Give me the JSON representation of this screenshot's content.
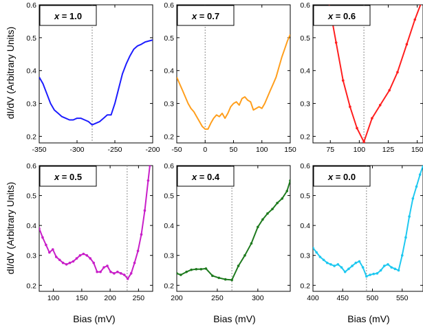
{
  "axis_labels": {
    "ylabel": "dI/dV (Arbitrary Units)",
    "xlabel": "Bias (mV)"
  },
  "chart_data": [
    {
      "type": "line",
      "label": "x = 1.0",
      "color": "#1c1cff",
      "xlim": [
        -350,
        -200
      ],
      "ylim": [
        0.18,
        0.6
      ],
      "xticks": [
        -350,
        -300,
        -250,
        -200
      ],
      "yticks": [
        0.2,
        0.3,
        0.4,
        0.5,
        0.6
      ],
      "dashed_x": -280,
      "markers": false,
      "x": [
        -350,
        -345,
        -340,
        -335,
        -330,
        -325,
        -320,
        -315,
        -310,
        -305,
        -300,
        -295,
        -290,
        -285,
        -280,
        -275,
        -270,
        -265,
        -260,
        -255,
        -250,
        -245,
        -240,
        -235,
        -230,
        -225,
        -220,
        -215,
        -210,
        -205,
        -200
      ],
      "y": [
        0.38,
        0.36,
        0.33,
        0.3,
        0.28,
        0.27,
        0.26,
        0.255,
        0.25,
        0.25,
        0.255,
        0.255,
        0.25,
        0.245,
        0.235,
        0.24,
        0.245,
        0.255,
        0.265,
        0.265,
        0.3,
        0.345,
        0.39,
        0.42,
        0.445,
        0.465,
        0.475,
        0.48,
        0.487,
        0.49,
        0.493
      ]
    },
    {
      "type": "line",
      "label": "x = 0.7",
      "color": "#ff9e1c",
      "xlim": [
        -50,
        150
      ],
      "ylim": [
        0.18,
        0.6
      ],
      "xticks": [
        -50,
        0,
        50,
        100,
        150
      ],
      "yticks": [
        0.2,
        0.3,
        0.4,
        0.5,
        0.6
      ],
      "dashed_x": 0,
      "markers": false,
      "x": [
        -50,
        -45,
        -40,
        -35,
        -30,
        -25,
        -20,
        -15,
        -10,
        -5,
        0,
        5,
        10,
        15,
        20,
        25,
        30,
        35,
        40,
        45,
        50,
        55,
        60,
        65,
        70,
        75,
        80,
        85,
        90,
        95,
        100,
        105,
        110,
        115,
        120,
        125,
        130,
        135,
        140,
        145,
        150
      ],
      "y": [
        0.38,
        0.36,
        0.34,
        0.32,
        0.3,
        0.285,
        0.275,
        0.26,
        0.245,
        0.23,
        0.222,
        0.222,
        0.24,
        0.255,
        0.265,
        0.26,
        0.27,
        0.255,
        0.27,
        0.29,
        0.3,
        0.305,
        0.295,
        0.315,
        0.32,
        0.31,
        0.305,
        0.28,
        0.285,
        0.29,
        0.285,
        0.3,
        0.32,
        0.34,
        0.36,
        0.38,
        0.41,
        0.44,
        0.465,
        0.49,
        0.51
      ]
    },
    {
      "type": "line",
      "label": "x = 0.6",
      "color": "#ff1e1e",
      "xlim": [
        60,
        155
      ],
      "ylim": [
        0.18,
        0.6
      ],
      "xticks": [
        75,
        100,
        125,
        150
      ],
      "yticks": [
        0.2,
        0.3,
        0.4,
        0.5,
        0.6
      ],
      "dashed_x": 104,
      "markers": true,
      "x": [
        73,
        80,
        86,
        92,
        98,
        104,
        111,
        118,
        126,
        133,
        141,
        148,
        155
      ],
      "y": [
        0.62,
        0.485,
        0.37,
        0.29,
        0.225,
        0.183,
        0.255,
        0.295,
        0.34,
        0.395,
        0.48,
        0.555,
        0.62
      ]
    },
    {
      "type": "line",
      "label": "x = 0.5",
      "color": "#c81ec8",
      "xlim": [
        75,
        275
      ],
      "ylim": [
        0.18,
        0.6
      ],
      "xticks": [
        100,
        150,
        200,
        250
      ],
      "yticks": [
        0.2,
        0.3,
        0.4,
        0.5,
        0.6
      ],
      "dashed_x": 230,
      "markers": true,
      "x": [
        75,
        81,
        87,
        93,
        99,
        105,
        111,
        117,
        123,
        129,
        135,
        141,
        147,
        153,
        159,
        165,
        171,
        177,
        183,
        189,
        195,
        201,
        207,
        213,
        219,
        225,
        231,
        237,
        243,
        249,
        255,
        261,
        267,
        270
      ],
      "y": [
        0.39,
        0.36,
        0.335,
        0.31,
        0.32,
        0.295,
        0.285,
        0.275,
        0.27,
        0.275,
        0.28,
        0.29,
        0.3,
        0.305,
        0.3,
        0.29,
        0.275,
        0.245,
        0.245,
        0.26,
        0.265,
        0.245,
        0.24,
        0.245,
        0.24,
        0.235,
        0.222,
        0.24,
        0.275,
        0.315,
        0.37,
        0.45,
        0.55,
        0.6
      ]
    },
    {
      "type": "line",
      "label": "x = 0.4",
      "color": "#1e7a1e",
      "xlim": [
        200,
        340
      ],
      "ylim": [
        0.18,
        0.6
      ],
      "xticks": [
        200,
        250,
        300
      ],
      "yticks": [
        0.2,
        0.3,
        0.4,
        0.5,
        0.6
      ],
      "dashed_x": 268,
      "markers": true,
      "x": [
        200,
        205,
        212,
        218,
        224,
        230,
        236,
        244,
        252,
        260,
        268,
        276,
        284,
        292,
        300,
        306,
        312,
        318,
        324,
        330,
        336,
        340
      ],
      "y": [
        0.24,
        0.235,
        0.245,
        0.252,
        0.254,
        0.254,
        0.256,
        0.232,
        0.225,
        0.22,
        0.218,
        0.265,
        0.3,
        0.34,
        0.395,
        0.42,
        0.44,
        0.455,
        0.475,
        0.49,
        0.515,
        0.55
      ]
    },
    {
      "type": "line",
      "label": "x = 0.0",
      "color": "#1ec8f0",
      "xlim": [
        400,
        585
      ],
      "ylim": [
        0.18,
        0.6
      ],
      "xticks": [
        400,
        450,
        500,
        550
      ],
      "yticks": [
        0.2,
        0.3,
        0.4,
        0.5,
        0.6
      ],
      "dashed_x": 490,
      "markers": true,
      "x": [
        400,
        406,
        412,
        418,
        424,
        430,
        436,
        442,
        448,
        454,
        460,
        466,
        472,
        478,
        484,
        490,
        496,
        502,
        508,
        514,
        520,
        526,
        532,
        538,
        544,
        550,
        556,
        562,
        568,
        574,
        580,
        585
      ],
      "y": [
        0.325,
        0.31,
        0.295,
        0.285,
        0.275,
        0.27,
        0.265,
        0.27,
        0.26,
        0.245,
        0.255,
        0.265,
        0.275,
        0.28,
        0.26,
        0.23,
        0.235,
        0.238,
        0.24,
        0.25,
        0.265,
        0.27,
        0.26,
        0.255,
        0.25,
        0.3,
        0.36,
        0.43,
        0.49,
        0.53,
        0.57,
        0.6
      ]
    }
  ]
}
